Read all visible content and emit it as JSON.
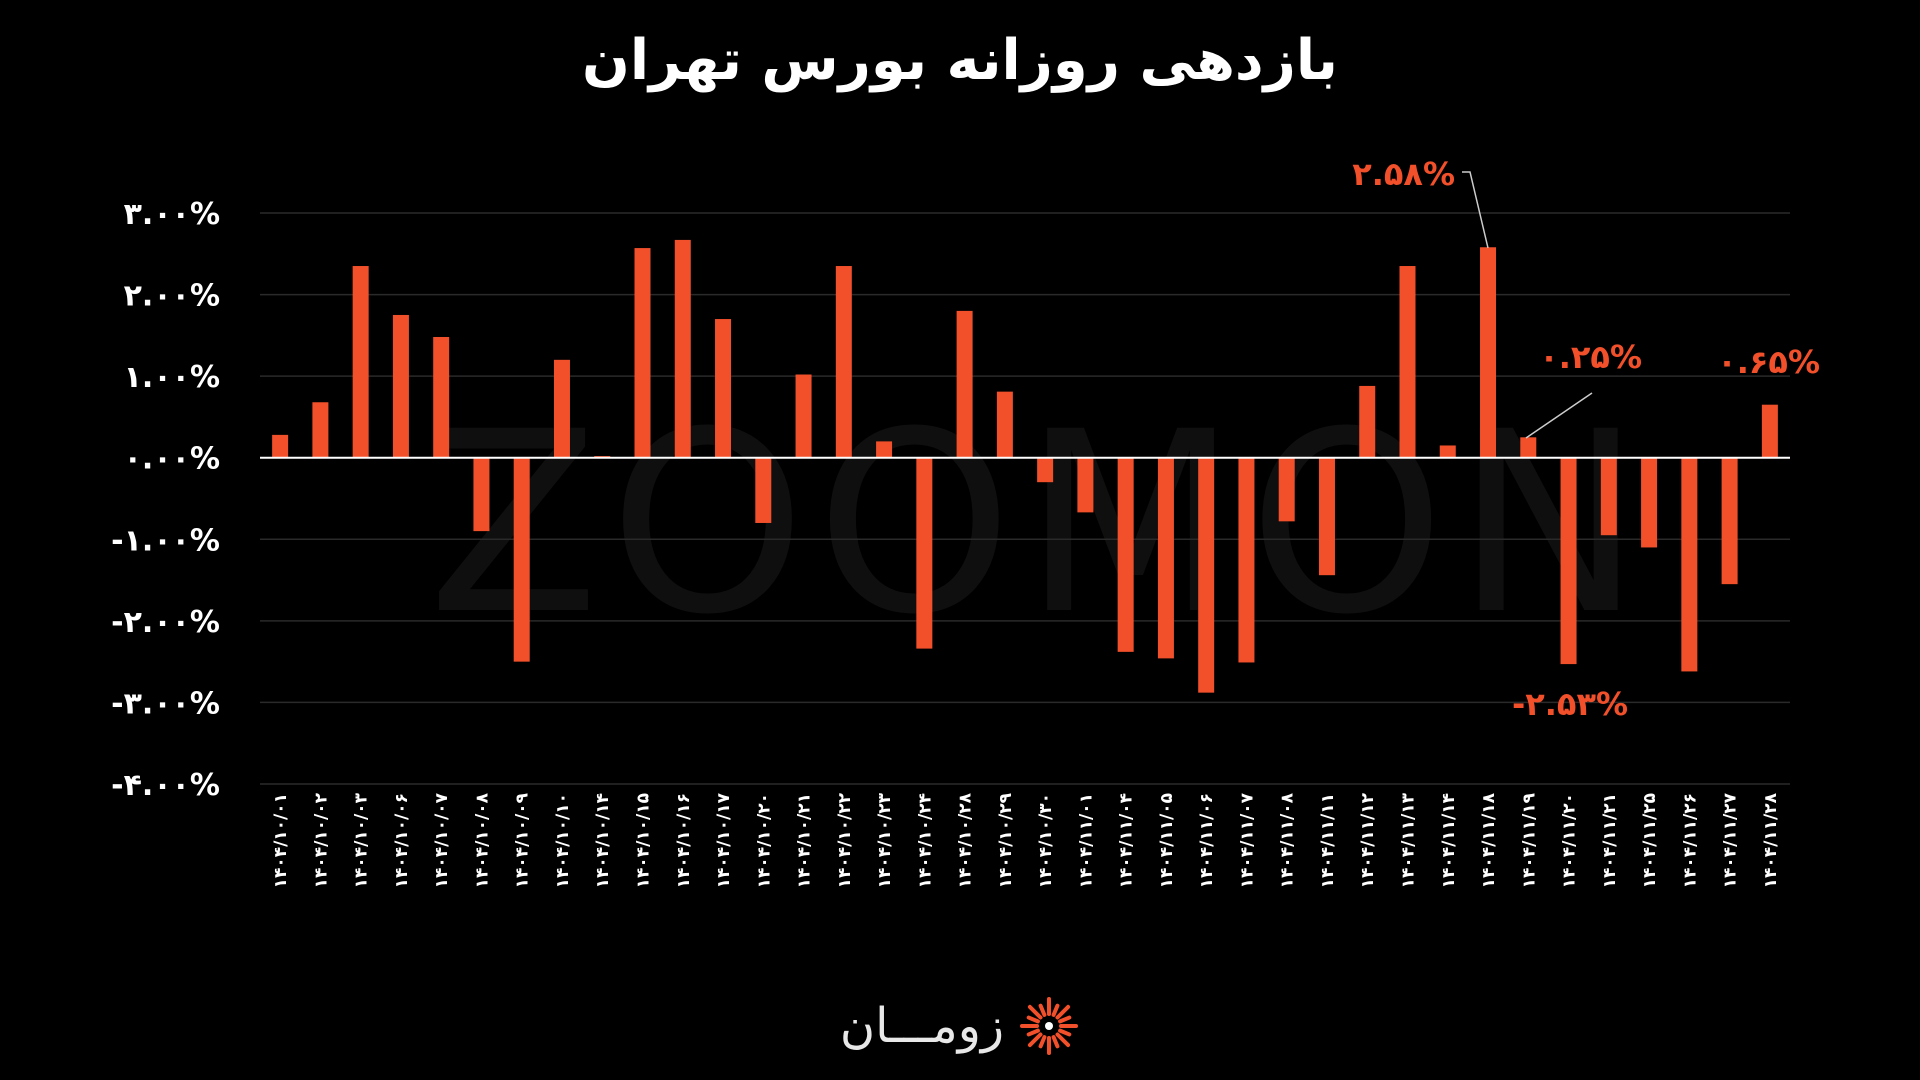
{
  "title": "بازدهی روزانه بورس تهران",
  "watermark": "ZOOMON",
  "brand": {
    "name": "زومـــان",
    "logo_icon": "sunburst-logo-icon"
  },
  "colors": {
    "bar": "#f2502b",
    "label": "#f2502b",
    "background": "#000000",
    "axis": "#ffffff",
    "grid": "#2a2a2a"
  },
  "chart_data": {
    "type": "bar",
    "title": "بازدهی روزانه بورس تهران",
    "ylim": [
      -4,
      3
    ],
    "yticks": [
      3,
      2,
      1,
      0,
      -1,
      -2,
      -3,
      -4
    ],
    "ytick_labels": [
      "۳.۰۰%",
      "۲.۰۰%",
      "۱.۰۰%",
      "۰.۰۰%",
      "-۱.۰۰%",
      "-۲.۰۰%",
      "-۳.۰۰%",
      "-۴.۰۰%"
    ],
    "grid": true,
    "categories": [
      "۱۴۰۴/۱۰/۰۱",
      "۱۴۰۴/۱۰/۰۲",
      "۱۴۰۴/۱۰/۰۳",
      "۱۴۰۴/۱۰/۰۶",
      "۱۴۰۴/۱۰/۰۷",
      "۱۴۰۴/۱۰/۰۸",
      "۱۴۰۴/۱۰/۰۹",
      "۱۴۰۴/۱۰/۱۰",
      "۱۴۰۴/۱۰/۱۴",
      "۱۴۰۴/۱۰/۱۵",
      "۱۴۰۴/۱۰/۱۶",
      "۱۴۰۴/۱۰/۱۷",
      "۱۴۰۴/۱۰/۲۰",
      "۱۴۰۴/۱۰/۲۱",
      "۱۴۰۴/۱۰/۲۲",
      "۱۴۰۴/۱۰/۲۳",
      "۱۴۰۴/۱۰/۲۴",
      "۱۴۰۴/۱۰/۲۸",
      "۱۴۰۴/۱۰/۲۹",
      "۱۴۰۴/۱۰/۳۰",
      "۱۴۰۴/۱۱/۰۱",
      "۱۴۰۴/۱۱/۰۴",
      "۱۴۰۴/۱۱/۰۵",
      "۱۴۰۴/۱۱/۰۶",
      "۱۴۰۴/۱۱/۰۷",
      "۱۴۰۴/۱۱/۰۸",
      "۱۴۰۴/۱۱/۱۱",
      "۱۴۰۴/۱۱/۱۲",
      "۱۴۰۴/۱۱/۱۳",
      "۱۴۰۴/۱۱/۱۴",
      "۱۴۰۴/۱۱/۱۸",
      "۱۴۰۴/۱۱/۱۹",
      "۱۴۰۴/۱۱/۲۰",
      "۱۴۰۴/۱۱/۲۱",
      "۱۴۰۴/۱۱/۲۵",
      "۱۴۰۴/۱۱/۲۶",
      "۱۴۰۴/۱۱/۲۷",
      "۱۴۰۴/۱۱/۲۸"
    ],
    "values": [
      0.28,
      0.68,
      2.35,
      1.75,
      1.48,
      -0.9,
      -2.5,
      1.2,
      0.02,
      2.57,
      2.67,
      1.7,
      -0.8,
      1.02,
      2.35,
      0.2,
      -2.34,
      1.8,
      0.81,
      -0.3,
      -0.67,
      -2.38,
      -2.46,
      -2.88,
      -2.51,
      -0.78,
      -1.44,
      0.88,
      2.35,
      0.15,
      2.58,
      0.25,
      -2.53,
      -0.95,
      -1.1,
      -2.62,
      -1.55,
      0.65
    ],
    "annotations": [
      {
        "index": 30,
        "text": "۲.۵۸%"
      },
      {
        "index": 31,
        "text": "۰.۲۵%"
      },
      {
        "index": 32,
        "text": "-۲.۵۳%"
      },
      {
        "index": 37,
        "text": "۰.۶۵%"
      }
    ]
  }
}
